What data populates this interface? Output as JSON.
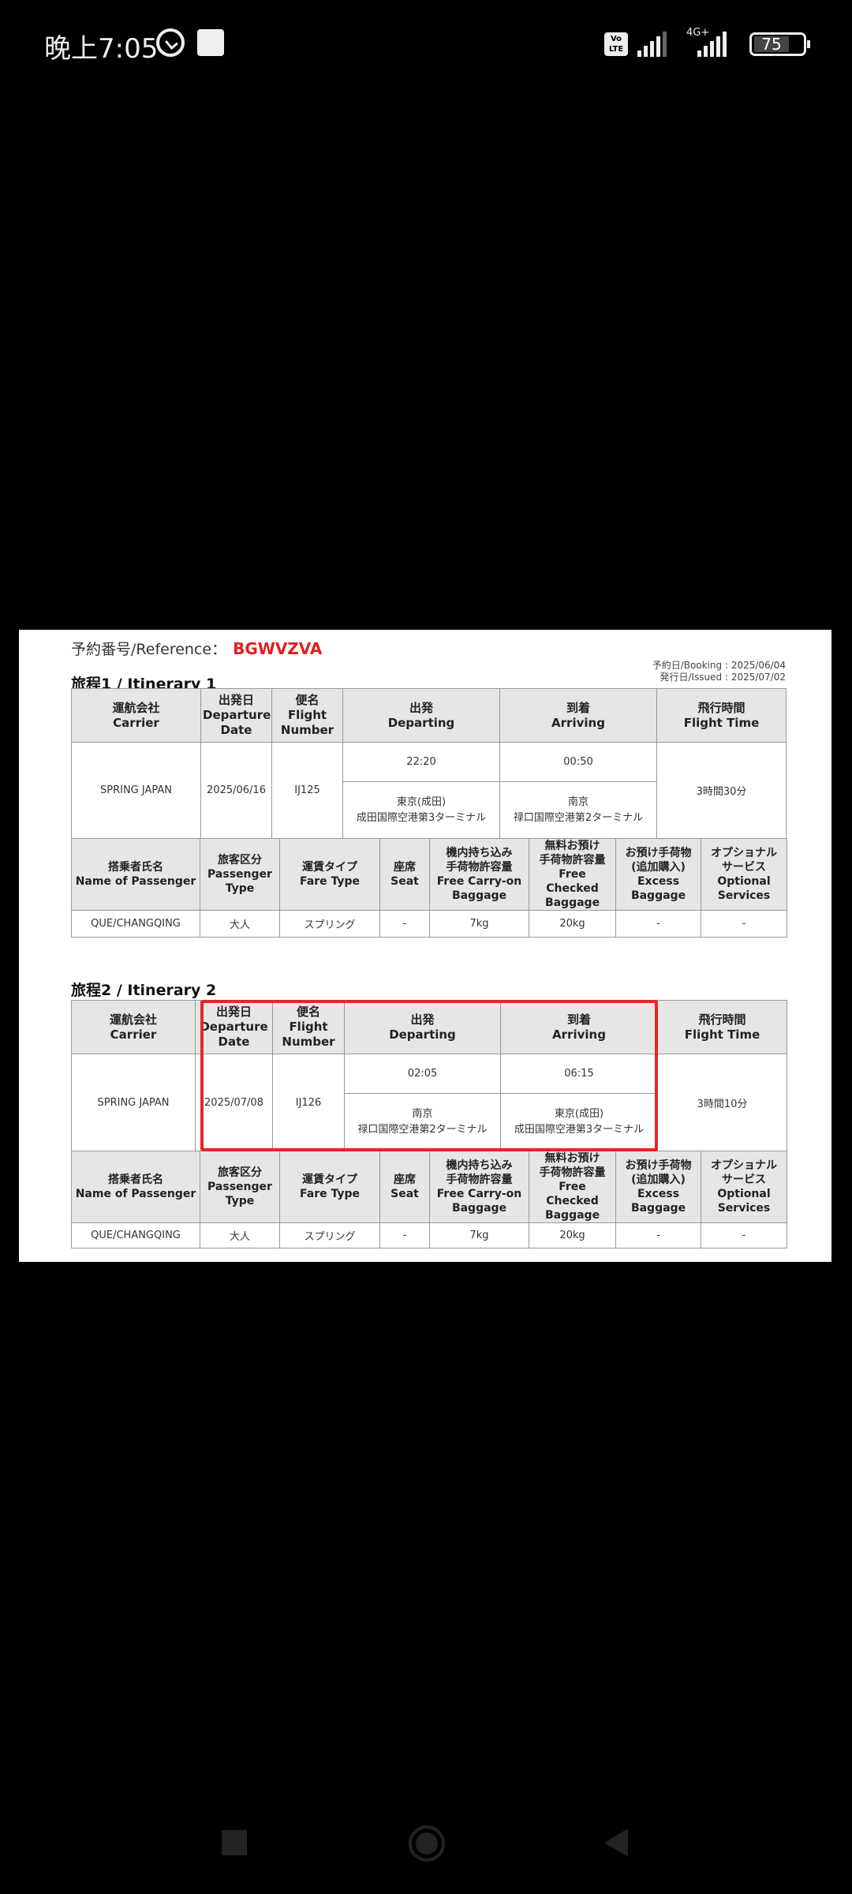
{
  "status_bar": {
    "time": "晚上7:05",
    "volte": "Vo LTE",
    "network": "4G+",
    "battery": "75"
  },
  "document": {
    "reference_label": "予約番号/Reference：",
    "reference": "BGWVZVA",
    "booking": "予約日/Booking : 2025/06/04",
    "issued": "発行日/Issued : 2025/07/02",
    "flight_headers": [
      "運航会社\nCarrier",
      "出発日\nDeparture\nDate",
      "便名\nFlight\nNumber",
      "出発\nDeparting",
      "到着\nArriving",
      "飛行時間\nFlight Time"
    ],
    "passenger_headers": [
      "搭乗者氏名\nName of Passenger",
      "旅客区分\nPassenger\nType",
      "運賃タイプ\nFare Type",
      "座席\nSeat",
      "機内持ち込み\n手荷物許容量\nFree Carry-on\nBaggage",
      "無料お預け\n手荷物許容量\nFree Checked\nBaggage",
      "お預け手荷物\n(追加購入)\nExcess\nBaggage",
      "オプショナル\nサービス\nOptional\nServices"
    ],
    "itineraries": [
      {
        "title": "旅程1 / Itinerary 1",
        "carrier": "SPRING JAPAN",
        "date": "2025/06/16",
        "flight": "IJ125",
        "dep_time": "22:20",
        "dep_place": "東京(成田)\n成田国際空港第3ターミナル",
        "arr_time": "00:50",
        "arr_place": "南京\n禄口国際空港第2ターミナル",
        "duration": "3時間30分",
        "passenger": {
          "name": "QUE/CHANGQING",
          "type": "大人",
          "fare": "スプリング",
          "seat": "-",
          "carry_on": "7kg",
          "checked": "20kg",
          "excess": "-",
          "optional": "-"
        }
      },
      {
        "title": "旅程2 / Itinerary 2",
        "carrier": "SPRING JAPAN",
        "date": "2025/07/08",
        "flight": "IJ126",
        "dep_time": "02:05",
        "dep_place": "南京\n禄口国際空港第2ターミナル",
        "arr_time": "06:15",
        "arr_place": "東京(成田)\n成田国際空港第3ターミナル",
        "duration": "3時間10分",
        "passenger": {
          "name": "QUE/CHANGQING",
          "type": "大人",
          "fare": "スプリング",
          "seat": "-",
          "carry_on": "7kg",
          "checked": "20kg",
          "excess": "-",
          "optional": "-"
        }
      }
    ],
    "highlight_color": "#e3262b"
  },
  "nav_bar": {
    "icons": [
      "recents-icon",
      "home-icon",
      "back-icon"
    ]
  }
}
